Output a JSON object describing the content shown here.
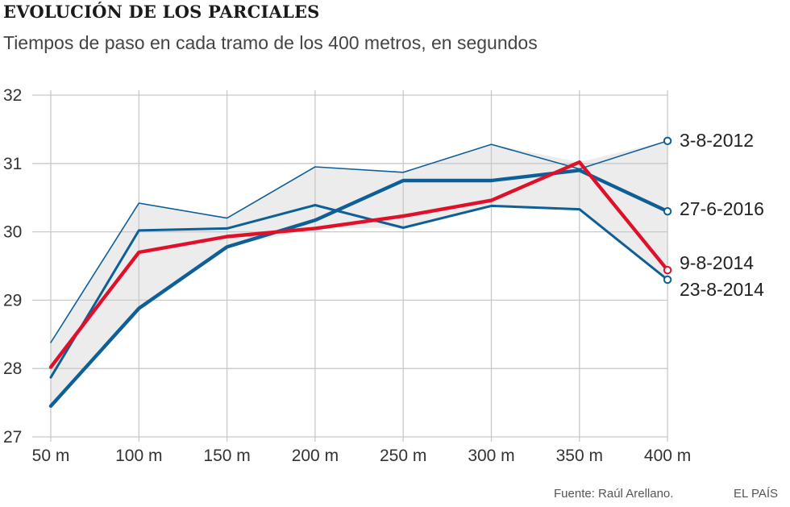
{
  "chart_data": {
    "type": "line",
    "title": "EVOLUCIÓN DE LOS PARCIALES",
    "subtitle": "Tiempos de paso en cada tramo de los 400 metros, en segundos",
    "categories": [
      "50 m",
      "100 m",
      "150 m",
      "200 m",
      "250 m",
      "300 m",
      "350 m",
      "400 m"
    ],
    "ylim": [
      27,
      32
    ],
    "yticks": [
      27,
      28,
      29,
      30,
      31,
      32
    ],
    "grid": true,
    "series": [
      {
        "name": "3-8-2012",
        "color": "#0f5f97",
        "weight": "thin",
        "values": [
          28.38,
          30.42,
          30.2,
          30.95,
          30.87,
          31.28,
          30.92,
          31.33
        ]
      },
      {
        "name": "27-6-2016",
        "color": "#0f5f97",
        "weight": "thick",
        "values": [
          27.45,
          28.88,
          29.78,
          30.17,
          30.75,
          30.75,
          30.9,
          30.3
        ]
      },
      {
        "name": "9-8-2014",
        "color": "#e0102b",
        "weight": "thick",
        "values": [
          28.02,
          29.7,
          29.93,
          30.05,
          30.23,
          30.46,
          31.02,
          29.44
        ]
      },
      {
        "name": "23-8-2014",
        "color": "#0f5f97",
        "weight": "medium",
        "values": [
          27.87,
          30.02,
          30.05,
          30.39,
          30.06,
          30.38,
          30.33,
          29.3
        ]
      }
    ],
    "source": "Fuente: Raúl Arellano.",
    "brand": "EL PAÍS"
  }
}
